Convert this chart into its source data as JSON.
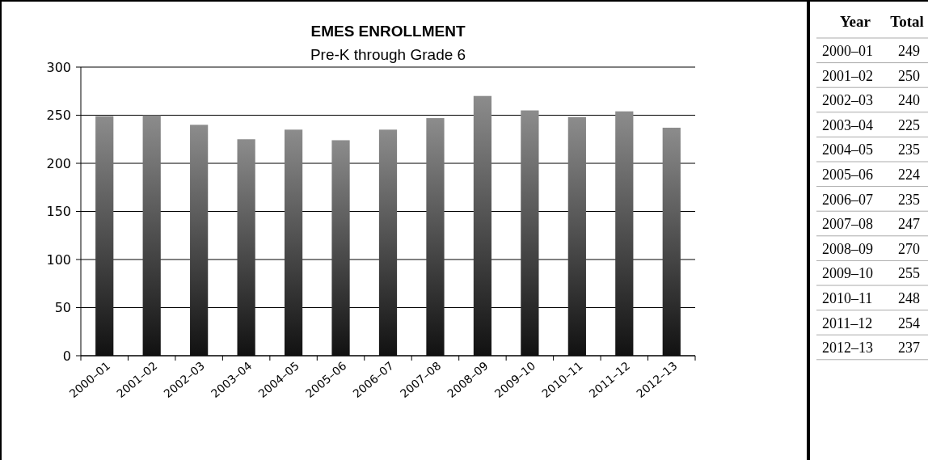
{
  "chart_data": [
    {
      "type": "bar",
      "title": "EMES ENROLLMENT",
      "subtitle": "Pre-K through Grade 6",
      "categories": [
        "2000–01",
        "2001–02",
        "2002–03",
        "2003–04",
        "2004–05",
        "2005–06",
        "2006–07",
        "2007–08",
        "2008–09",
        "2009–10",
        "2010–11",
        "2011–12",
        "2012–13"
      ],
      "values": [
        249,
        250,
        240,
        225,
        235,
        224,
        235,
        247,
        270,
        255,
        248,
        254,
        237
      ],
      "color": "#8c8c8c",
      "ylim": [
        0,
        300
      ],
      "yticks": [
        0,
        50,
        100,
        150,
        200,
        250,
        300
      ],
      "grid": "y"
    },
    {
      "type": "other",
      "annotations": [
        "Year",
        "Total"
      ],
      "data_labels": true,
      "categories": [
        "2000–01",
        "2001–02",
        "2002–03",
        "2003–04",
        "2004–05",
        "2005–06",
        "2006–07",
        "2007–08",
        "2008–09",
        "2009–10",
        "2010–11",
        "2011–12",
        "2012–13"
      ],
      "values": [
        249,
        250,
        240,
        225,
        235,
        224,
        235,
        247,
        270,
        255,
        248,
        254,
        237
      ]
    }
  ]
}
